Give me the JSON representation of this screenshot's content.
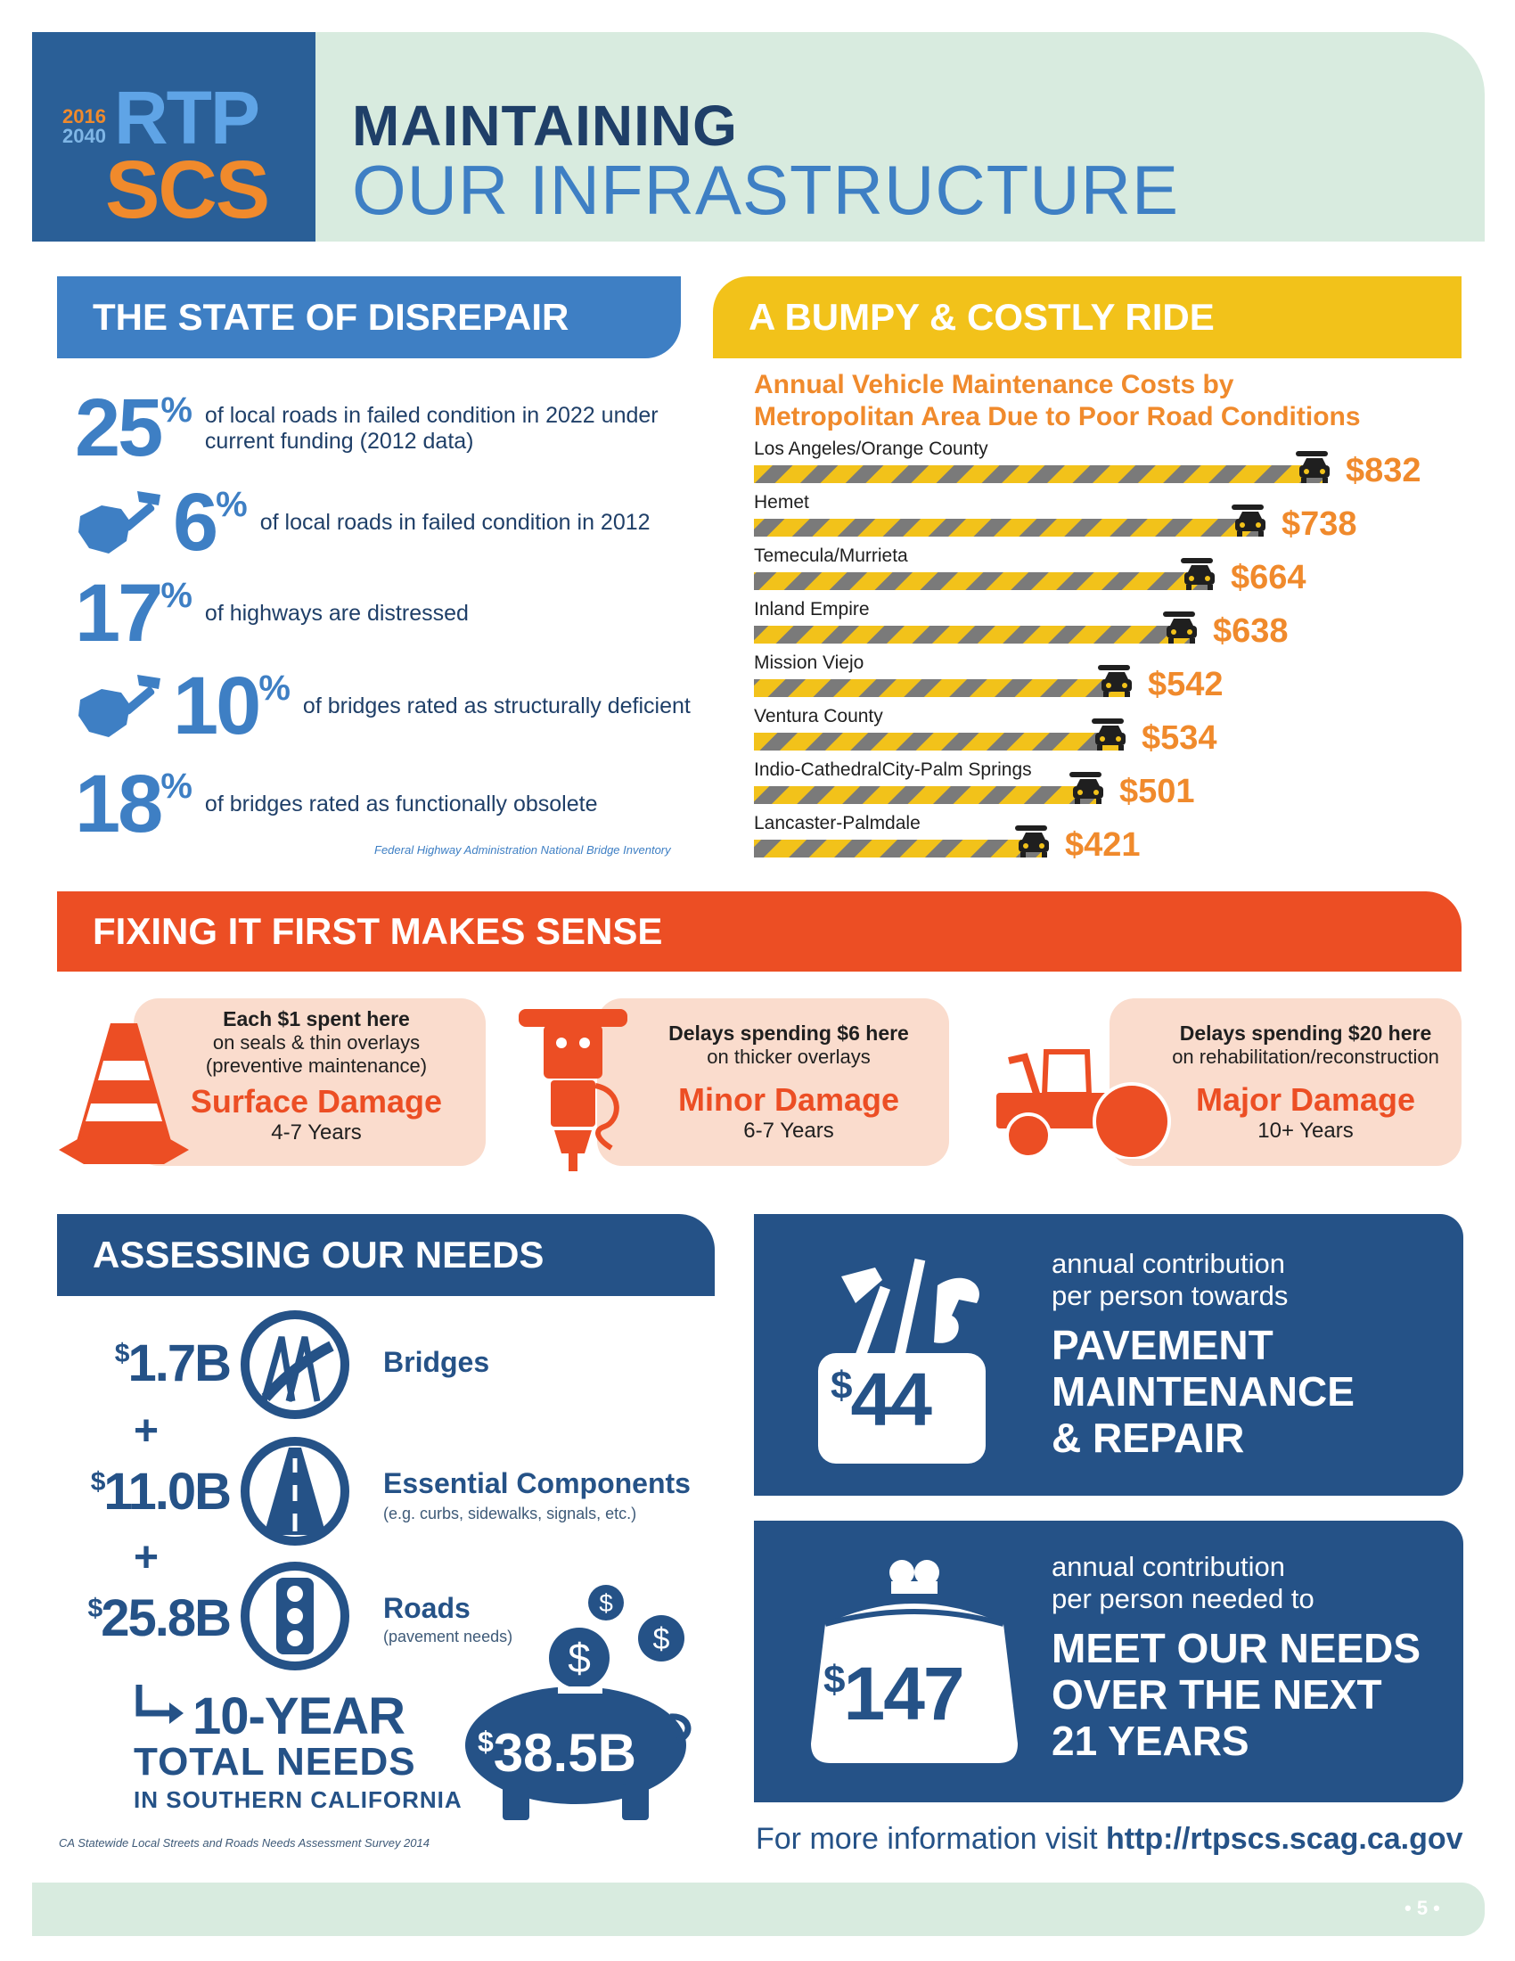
{
  "header": {
    "logo": {
      "year_start": "2016",
      "year_end": "2040",
      "line1": "RTP",
      "line2": "SCS"
    },
    "title_line1": "MAINTAINING",
    "title_line2": "OUR INFRASTRUCTURE"
  },
  "colors": {
    "navy": "#255287",
    "blue": "#3e7fc4",
    "orange": "#f08a2c",
    "red_orange": "#ec4e24",
    "yellow": "#f2c21a",
    "mint": "#d8ebdf",
    "peach": "#fadccd"
  },
  "disrepair": {
    "heading": "THE STATE OF DISREPAIR",
    "stats": [
      {
        "value": "25",
        "unit": "%",
        "text": "of local roads in failed condition in 2022 under current funding (2012 data)",
        "icon": ""
      },
      {
        "value": "6",
        "unit": "%",
        "text": "of local roads in failed condition in 2012",
        "icon": "hand-hammer-icon"
      },
      {
        "value": "17",
        "unit": "%",
        "text": "of highways are distressed",
        "icon": ""
      },
      {
        "value": "10",
        "unit": "%",
        "text": "of bridges rated as structurally deficient",
        "icon": "hand-hammer-icon"
      },
      {
        "value": "18",
        "unit": "%",
        "text": "of bridges rated as functionally obsolete",
        "icon": ""
      }
    ],
    "source": "Federal Highway Administration National Bridge Inventory"
  },
  "bumpy": {
    "heading": "A BUMPY & COSTLY RIDE"
  },
  "chart_data": {
    "type": "bar",
    "orientation": "horizontal",
    "title": "Annual Vehicle Maintenance Costs by Metropolitan Area Due to Poor Road Conditions",
    "categories": [
      "Los Angeles/Orange County",
      "Hemet",
      "Temecula/Murrieta",
      "Inland Empire",
      "Mission Viejo",
      "Ventura County",
      "Indio-CathedralCity-Palm Springs",
      "Lancaster-Palmdale"
    ],
    "values": [
      832,
      738,
      664,
      638,
      542,
      534,
      501,
      421
    ],
    "value_labels": [
      "$832",
      "$738",
      "$664",
      "$638",
      "$542",
      "$534",
      "$501",
      "$421"
    ],
    "bar_style": "yellow-gray diagonal stripes",
    "end_icon": "car-wrench-icon"
  },
  "fixing": {
    "heading": "FIXING IT FIRST MAKES SENSE",
    "panels": [
      {
        "line1": "Each $1 spent here",
        "line2": "on seals & thin overlays",
        "line3": "(preventive maintenance)",
        "label": "Surface Damage",
        "years": "4-7 Years",
        "icon": "traffic-cone-icon"
      },
      {
        "line1": "Delays spending $6 here",
        "line2": "on thicker overlays",
        "line3": "",
        "label": "Minor Damage",
        "years": "6-7 Years",
        "icon": "jackhammer-icon"
      },
      {
        "line1": "Delays spending $20 here",
        "line2": "on rehabilitation/reconstruction",
        "line3": "",
        "label": "Major Damage",
        "years": "10+ Years",
        "icon": "road-roller-icon"
      }
    ]
  },
  "assessing": {
    "heading": "ASSESSING OUR NEEDS",
    "needs": [
      {
        "currency": "$",
        "amount": "1.7B",
        "label": "Bridges",
        "sub": "",
        "icon": "bridge-icon"
      },
      {
        "currency": "$",
        "amount": "11.0B",
        "label": "Essential Components",
        "sub": "(e.g. curbs, sidewalks, signals, etc.)",
        "icon": "road-icon"
      },
      {
        "currency": "$",
        "amount": "25.8B",
        "label": "Roads",
        "sub": "(pavement needs)",
        "icon": "traffic-light-icon"
      }
    ],
    "plus": "+",
    "total_line1": "10-YEAR",
    "total_line2": "TOTAL NEEDS",
    "total_line3": "IN SOUTHERN CALIFORNIA",
    "total_currency": "$",
    "total_amount": "38.5B",
    "source": "CA Statewide Local Streets and Roads Needs Assessment Survey 2014"
  },
  "cards": [
    {
      "currency": "$",
      "amount": "44",
      "small1": "annual contribution",
      "small2": "per person towards",
      "big1": "PAVEMENT",
      "big2": "MAINTENANCE",
      "big3": "& REPAIR",
      "icon": "toolbox-icon"
    },
    {
      "currency": "$",
      "amount": "147",
      "small1": "annual contribution",
      "small2": "per person needed to",
      "big1": "MEET OUR NEEDS",
      "big2": "OVER THE NEXT",
      "big3": "21 YEARS",
      "icon": "coin-purse-icon"
    }
  ],
  "more_info": {
    "prefix": "For more information visit ",
    "url": "http://rtpscs.scag.ca.gov"
  },
  "footer": {
    "page": "• 5 •"
  }
}
